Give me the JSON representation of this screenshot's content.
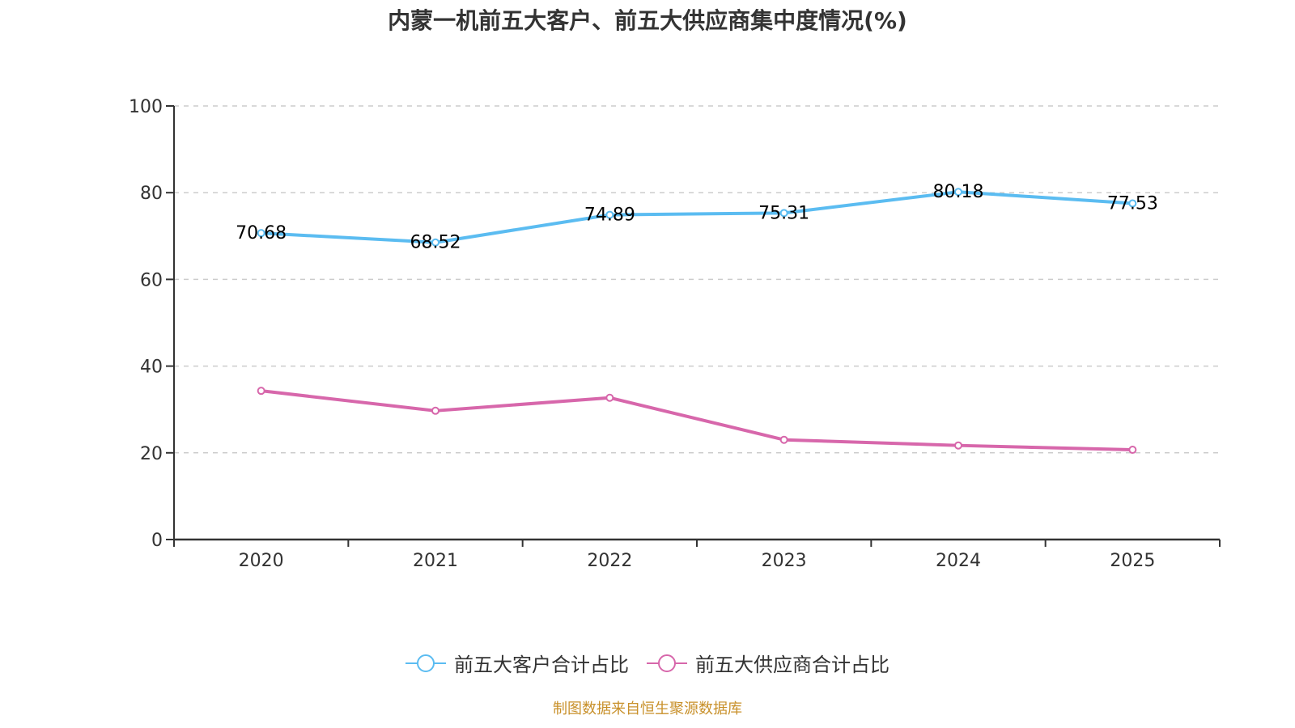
{
  "chart_data": {
    "type": "line",
    "title": "内蒙一机前五大客户、前五大供应商集中度情况(%)",
    "xlabel": "",
    "ylabel": "",
    "categories": [
      "2020",
      "2021",
      "2022",
      "2023",
      "2024",
      "2025"
    ],
    "ylim": [
      0,
      100
    ],
    "yticks": [
      "0",
      "20",
      "40",
      "60",
      "80",
      "100"
    ],
    "grid": "horizontal-dashed",
    "legend_position": "bottom-center",
    "series": [
      {
        "name": "前五大客户合计占比",
        "color": "#5bbcf1",
        "values": [
          70.68,
          68.52,
          74.89,
          75.31,
          80.18,
          77.53
        ],
        "labels": [
          "70.68",
          "68.52",
          "74.89",
          "75.31",
          "80.18",
          "77.53"
        ],
        "show_labels": true
      },
      {
        "name": "前五大供应商合计占比",
        "color": "#d767ab",
        "values": [
          34.3,
          29.7,
          32.7,
          23.0,
          21.7,
          20.7
        ],
        "labels": [],
        "show_labels": false
      }
    ]
  },
  "footer": {
    "source": "制图数据来自恒生聚源数据库"
  }
}
